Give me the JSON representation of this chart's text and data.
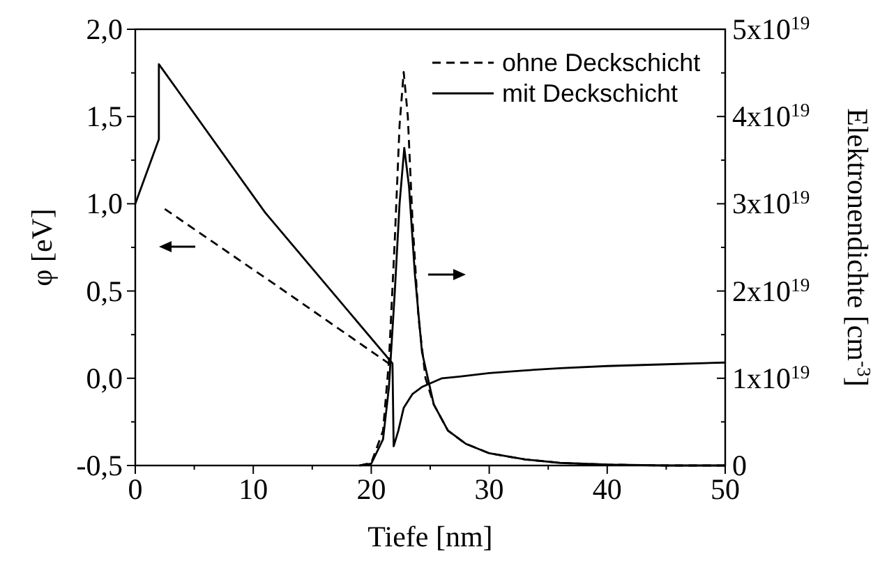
{
  "chart_data": {
    "type": "line",
    "xlabel": "Tiefe [nm]",
    "ylabel": "φ [eV]",
    "y2label": "Elektronendichte [cm$^{-3}$]",
    "xlim": [
      0,
      50
    ],
    "xticks": [
      0,
      10,
      20,
      30,
      40,
      50
    ],
    "ylim": [
      -0.5,
      2.0
    ],
    "yticks": [
      {
        "value": -0.5,
        "label": "-0,5"
      },
      {
        "value": 0,
        "label": "0,0"
      },
      {
        "value": 0.5,
        "label": "0,5"
      },
      {
        "value": 1.0,
        "label": "1,0"
      },
      {
        "value": 1.5,
        "label": "1,5"
      },
      {
        "value": 2.0,
        "label": "2,0"
      }
    ],
    "y2lim": [
      0,
      5e+19
    ],
    "y2ticks": [
      0,
      {
        "value": 1e+19,
        "label": "1x10$^{19}$"
      },
      {
        "value": 2e+19,
        "label": "2x10$^{19}$"
      },
      {
        "value": 3e+19,
        "label": "3x10$^{19}$"
      },
      {
        "value": 4e+19,
        "label": "4x10$^{19}$"
      },
      {
        "value": 5e+19,
        "label": "5x10$^{19}$"
      }
    ],
    "grid": false,
    "legend": "top right",
    "series": [
      {
        "name": "ohne Deckschicht",
        "color": "#000000",
        "line_style": "dashed",
        "x": [
          2.5,
          12,
          21.8
        ],
        "values": [
          0.97,
          0.53,
          0.07
        ]
      },
      {
        "name": "mit Deckschicht",
        "color": "#000000",
        "line_style": "solid",
        "x": [
          0,
          2,
          2,
          11,
          21.8,
          21.9,
          22.3,
          22.75,
          23.5,
          24.3,
          26,
          27.5,
          30,
          33,
          36,
          40,
          45,
          50
        ],
        "values": [
          1.0,
          1.37,
          1.8,
          0.95,
          0.085,
          -0.39,
          -0.3,
          -0.17,
          -0.09,
          -0.05,
          0.0,
          0.01,
          0.03,
          0.045,
          0.058,
          0.07,
          0.08,
          0.09
        ]
      },
      {
        "color": "#000000",
        "line_style": "dashed",
        "axis": "y2",
        "x": [
          19,
          20,
          21,
          21.5,
          22,
          22.4,
          22.75,
          23.1,
          23.5,
          24,
          24.6,
          25.3,
          26.5,
          28,
          30,
          33,
          36,
          40,
          45,
          50
        ],
        "values": [
          0,
          3e+17,
          4e+18,
          1.2e+19,
          2.6e+19,
          3.9e+19,
          4.51e+19,
          4e+19,
          2.8e+19,
          1.7e+19,
          1e+19,
          7e+18,
          4e+18,
          2.5e+18,
          1.4e+18,
          7e+17,
          3e+17,
          1e+17,
          0,
          0
        ]
      },
      {
        "color": "#000000",
        "line_style": "solid",
        "axis": "y2",
        "x": [
          19,
          20,
          21,
          21.5,
          22,
          22.4,
          22.8,
          23.2,
          23.7,
          24.3,
          25.3,
          26.5,
          28,
          30,
          33,
          36,
          40,
          45,
          50
        ],
        "values": [
          0,
          2e+17,
          3e+18,
          9e+18,
          2e+19,
          3e+19,
          3.64e+19,
          3.2e+19,
          2.19e+19,
          1.3e+19,
          7e+18,
          4e+18,
          2.5e+18,
          1.4e+18,
          7e+17,
          3e+17,
          1e+17,
          0,
          0
        ]
      }
    ]
  }
}
